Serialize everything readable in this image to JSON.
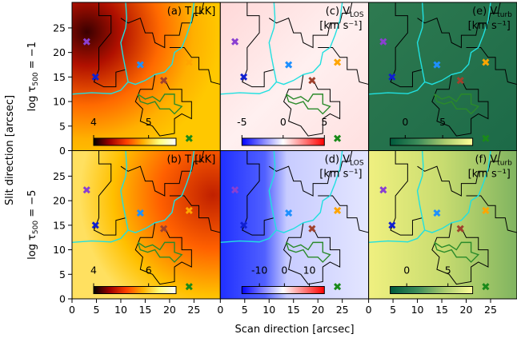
{
  "figure": {
    "xlabel": "Scan direction [arcsec]",
    "ylabel": "Slit direction [arcsec]",
    "row_labels": [
      {
        "text": "log τ",
        "sub": "500",
        "rest": " = −1"
      },
      {
        "text": "log τ",
        "sub": "500",
        "rest": " = −5"
      }
    ],
    "xlim": [
      0,
      30.4
    ],
    "ylim": [
      0,
      30.2
    ],
    "xticks": [
      0,
      5,
      10,
      15,
      20,
      25
    ],
    "yticks": [
      0,
      5,
      10,
      15,
      20,
      25
    ],
    "markers": {
      "x": [
        3,
        4.8,
        14,
        24,
        18.8,
        24
      ],
      "y": [
        22.2,
        15,
        17.5,
        18,
        14.3,
        2.5
      ],
      "colors": [
        "#8a3fd1",
        "#1020d0",
        "#1e90ff",
        "#ffa500",
        "#a0412d",
        "#1a8a1a"
      ]
    }
  },
  "chart_data": [
    {
      "type": "heatmap",
      "title": "(a) T [kK]",
      "clim": [
        4,
        5.5
      ],
      "cticks": [
        4,
        5
      ],
      "cmap": [
        "#000000",
        "#a00000",
        "#ff4000",
        "#ffb000",
        "#ffff80",
        "#ffffff"
      ]
    },
    {
      "type": "heatmap",
      "title": "(c) V",
      "title_sub": "LOS",
      "unit": "[km s⁻¹]",
      "clim": [
        -5,
        5
      ],
      "cticks": [
        -5,
        0,
        5
      ],
      "cmap": [
        "#0000ff",
        "#ffffff",
        "#ff0000"
      ]
    },
    {
      "type": "heatmap",
      "title": "(e) V",
      "title_sub": "turb",
      "unit": "[km s⁻¹]",
      "clim": [
        -2,
        9
      ],
      "cticks": [
        0,
        5
      ],
      "cmap": [
        "#005a3c",
        "#3c8c5a",
        "#aacc6e",
        "#ffff99"
      ]
    },
    {
      "type": "heatmap",
      "title": "(b) T [kK]",
      "clim": [
        4,
        7
      ],
      "cticks": [
        4,
        6
      ],
      "cmap": [
        "#000000",
        "#a00000",
        "#ff4000",
        "#ffb000",
        "#ffff80",
        "#ffffff"
      ]
    },
    {
      "type": "heatmap",
      "title": "(d) V",
      "title_sub": "LOS",
      "unit": "[km s⁻¹]",
      "clim": [
        -17,
        16
      ],
      "cticks": [
        -10,
        0,
        10
      ],
      "cmap": [
        "#0000ff",
        "#ffffff",
        "#ff0000"
      ]
    },
    {
      "type": "heatmap",
      "title": "(f) V",
      "title_sub": "turb",
      "unit": "[km s⁻¹]",
      "clim": [
        -2,
        8
      ],
      "cticks": [
        0,
        5
      ],
      "cmap": [
        "#005a3c",
        "#3c8c5a",
        "#aacc6e",
        "#ffff99"
      ]
    }
  ]
}
